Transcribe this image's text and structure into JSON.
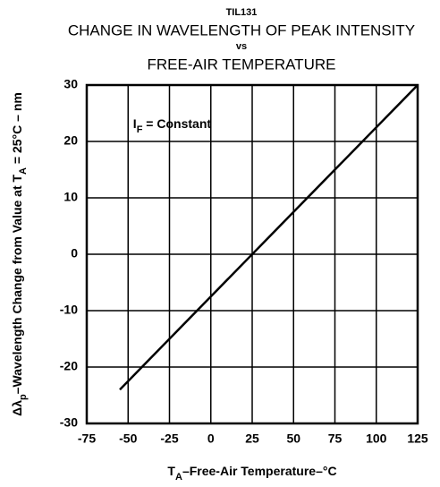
{
  "chart_data": {
    "type": "line",
    "title": [
      "TIL131",
      "CHANGE IN WAVELENGTH OF PEAK INTENSITY",
      "vs",
      "FREE-AIR TEMPERATURE"
    ],
    "xlabel": [
      {
        "text": "T"
      },
      {
        "text": "A",
        "sub": true
      },
      {
        "text": "–Free-Air Temperature–°C"
      }
    ],
    "ylabel": [
      {
        "text": "Δλ"
      },
      {
        "text": "p",
        "sub": true
      },
      {
        "text": "–Wavelength Change from Value at T"
      },
      {
        "text": "A",
        "sub": true
      },
      {
        "text": " = 25°C – nm"
      }
    ],
    "annotation": [
      {
        "text": "I"
      },
      {
        "text": "F",
        "sub": true
      },
      {
        "text": " = Constant"
      }
    ],
    "x": [
      -55,
      125
    ],
    "series": [
      {
        "color": "#000000",
        "values": [
          -24,
          30
        ]
      }
    ],
    "xlim": [
      -75,
      125
    ],
    "xticks": [
      -75,
      -50,
      -25,
      0,
      25,
      50,
      75,
      100,
      125
    ],
    "ylim": [
      -30,
      30
    ],
    "yticks": [
      -30,
      -20,
      -10,
      0,
      10,
      20,
      30
    ],
    "grid": true
  }
}
